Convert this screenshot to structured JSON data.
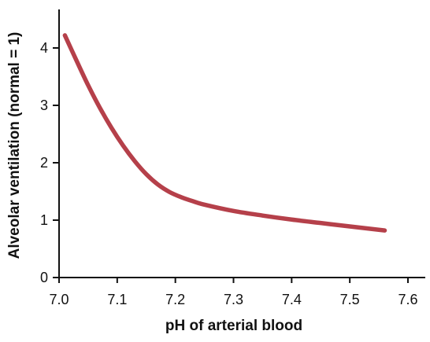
{
  "chart_data": {
    "type": "line",
    "title": "",
    "xlabel": "pH of arterial blood",
    "ylabel": "Alveolar ventilation (normal = 1)",
    "xlim": [
      7.0,
      7.6
    ],
    "ylim": [
      0,
      4.7
    ],
    "xticks": [
      "7.0",
      "7.1",
      "7.2",
      "7.3",
      "7.4",
      "7.5",
      "7.6"
    ],
    "yticks": [
      "0",
      "1",
      "2",
      "3",
      "4"
    ],
    "grid": false,
    "series": [
      {
        "color": "#b5404a",
        "x": [
          7.01,
          7.03,
          7.05,
          7.07,
          7.09,
          7.11,
          7.13,
          7.15,
          7.17,
          7.19,
          7.21,
          7.23,
          7.25,
          7.3,
          7.35,
          7.4,
          7.45,
          7.5,
          7.56
        ],
        "y": [
          4.22,
          3.78,
          3.35,
          2.96,
          2.61,
          2.3,
          2.03,
          1.8,
          1.62,
          1.49,
          1.4,
          1.33,
          1.27,
          1.16,
          1.08,
          1.01,
          0.95,
          0.89,
          0.82
        ]
      }
    ]
  }
}
